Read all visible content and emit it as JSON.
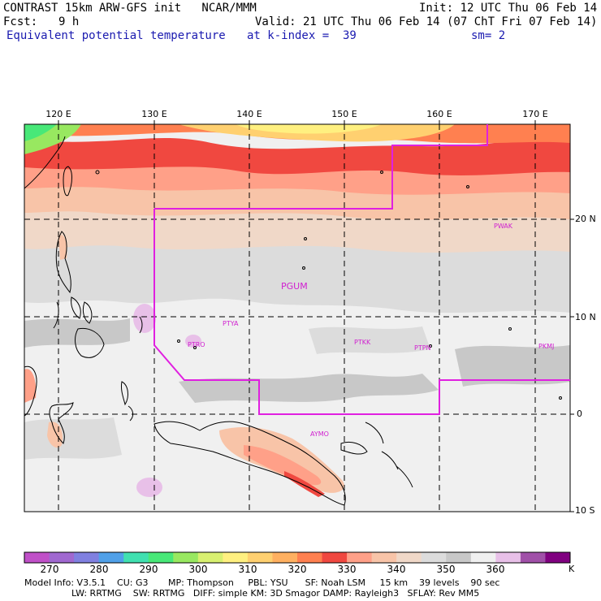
{
  "header": {
    "model_title": "CONTRAST 15km ARW-GFS init   NCAR/MMM",
    "init": "Init: 12 UTC Thu 06 Feb 14",
    "fcst_label": "Fcst:",
    "fcst_value": "9 h",
    "valid": "Valid: 21 UTC Thu 06 Feb 14 (07 ChT Fri 07 Feb 14)",
    "field": "Equivalent potential temperature",
    "level": "at k-index =  39",
    "smoothing": "sm= 2"
  },
  "map": {
    "lon_labels": [
      "120 E",
      "130 E",
      "140 E",
      "150 E",
      "160 E",
      "170 E"
    ],
    "lat_labels": [
      "20 N",
      "10 N",
      "0",
      "10 S"
    ],
    "stations": [
      "PGUM",
      "PTYA",
      "PTRO",
      "PTKK",
      "PTPN",
      "PKMJ",
      "PWAK",
      "AYMO"
    ],
    "boundary_color": "#e020e0",
    "station_color": "#d020d0"
  },
  "colorbar": {
    "unit": "K",
    "ticks": [
      "270",
      "280",
      "290",
      "300",
      "310",
      "320",
      "330",
      "340",
      "350",
      "360"
    ],
    "colors": [
      "#c050c8",
      "#a068d0",
      "#8080e0",
      "#50a0e8",
      "#40e0b0",
      "#48e878",
      "#98e860",
      "#d8f070",
      "#fff080",
      "#ffd070",
      "#ffb060",
      "#ff8050",
      "#f04840",
      "#ffa088",
      "#f8c4a8",
      "#f0d8c8",
      "#dcdcdc",
      "#c8c8c8",
      "#f0f0f0",
      "#e8c0e8",
      "#a050a8",
      "#800080"
    ]
  },
  "model_info": {
    "line1": "Model Info: V3.5.1    CU: G3       MP: Thompson     PBL: YSU      SF: Noah LSM     15 km    39 levels    90 sec",
    "line2": "LW: RRTMG    SW: RRTMG   DIFF: simple KM: 3D Smagor DAMP: Rayleigh3   SFLAY: Rev MM5"
  }
}
